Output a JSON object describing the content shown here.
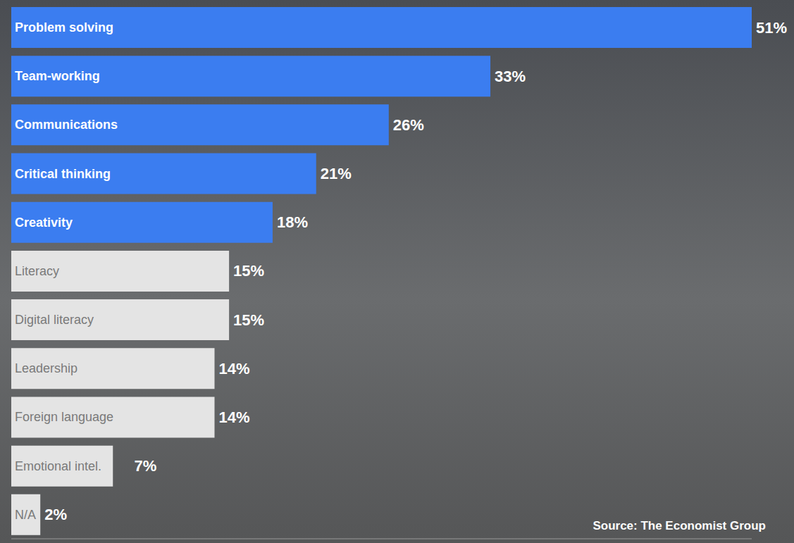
{
  "chart_data": {
    "type": "bar",
    "orientation": "horizontal",
    "categories": [
      "Problem solving",
      "Team-working",
      "Communications",
      "Critical thinking",
      "Creativity",
      "Literacy",
      "Digital literacy",
      "Leadership",
      "Foreign language",
      "Emotional intel.",
      "N/A"
    ],
    "values": [
      51,
      33,
      26,
      21,
      18,
      15,
      15,
      14,
      14,
      7,
      2
    ],
    "value_labels": [
      "51%",
      "33%",
      "26%",
      "21%",
      "18%",
      "15%",
      "15%",
      "14%",
      "14%",
      "7%",
      "2%"
    ],
    "colors": [
      "#3b7df0",
      "#3b7df0",
      "#3b7df0",
      "#3b7df0",
      "#3b7df0",
      "#e4e4e4",
      "#e4e4e4",
      "#e4e4e4",
      "#e4e4e4",
      "#e4e4e4",
      "#e4e4e4"
    ],
    "xlim": [
      0,
      51
    ],
    "xticks": [],
    "data_labels": true,
    "tick_labels": false,
    "grid": false,
    "source": "Source: The Economist Group"
  }
}
